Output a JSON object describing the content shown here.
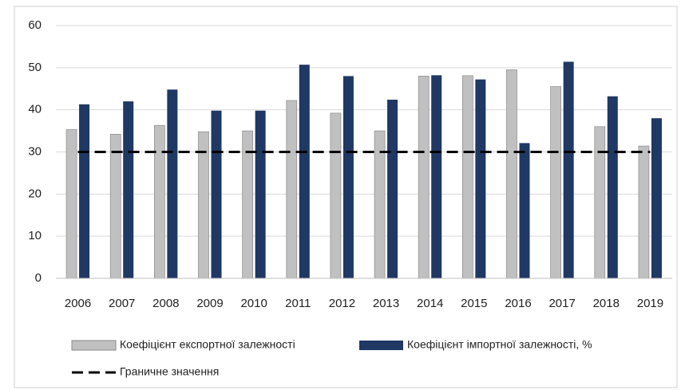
{
  "chart_data": {
    "type": "bar",
    "categories": [
      "2006",
      "2007",
      "2008",
      "2009",
      "2010",
      "2011",
      "2012",
      "2013",
      "2014",
      "2015",
      "2016",
      "2017",
      "2018",
      "2019"
    ],
    "series": [
      {
        "name": "Коефіцієнт експортної залежності",
        "color": "#c0c0c0",
        "values": [
          35.3,
          34.2,
          36.3,
          34.8,
          35.0,
          42.2,
          39.2,
          35.0,
          48.0,
          48.1,
          49.5,
          45.5,
          36.0,
          31.4
        ]
      },
      {
        "name": "Коефіцієнт імпортної залежності, %",
        "color": "#1f3864",
        "values": [
          41.3,
          42.0,
          44.8,
          39.8,
          39.8,
          50.7,
          48.0,
          42.4,
          48.2,
          47.2,
          32.1,
          51.4,
          43.2,
          38.0
        ]
      },
      {
        "name": "Граничне значення",
        "type": "line",
        "color": "#000000",
        "values": [
          30,
          30,
          30,
          30,
          30,
          30,
          30,
          30,
          30,
          30,
          30,
          30,
          30,
          30
        ]
      }
    ],
    "ylim": [
      0,
      60
    ],
    "yticks": [
      0,
      10,
      20,
      30,
      40,
      50,
      60
    ],
    "grid": true,
    "legend": "bottom"
  }
}
